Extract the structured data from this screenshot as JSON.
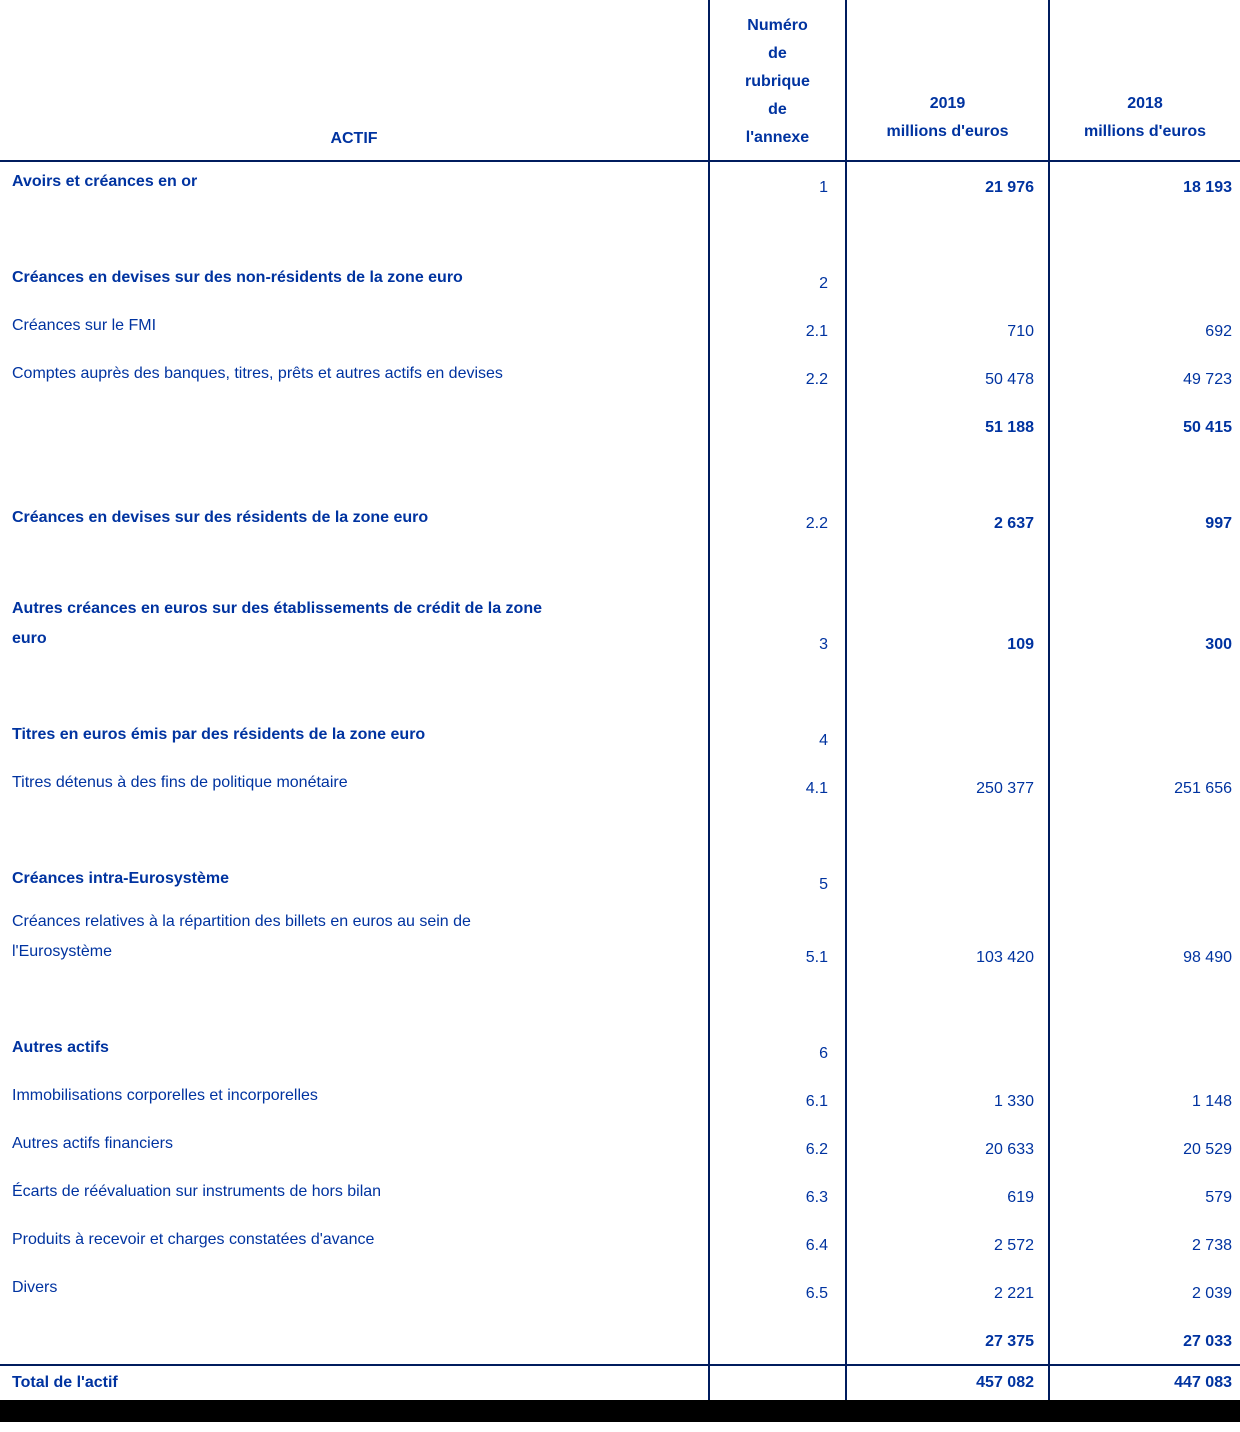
{
  "colors": {
    "text_blue": "#0033a0",
    "line": "#001c5e",
    "bottom_bar": "#000000"
  },
  "header": {
    "actif_label": "ACTIF",
    "note_column_lines": [
      "Numéro",
      "de",
      "rubrique",
      "de",
      "l'annexe"
    ],
    "col_2019": {
      "year": "2019",
      "unit": "millions d'euros"
    },
    "col_2018": {
      "year": "2018",
      "unit": "millions d'euros"
    }
  },
  "table": {
    "rows": [
      {
        "type": "section",
        "label": "Avoirs et créances en or",
        "note": "1",
        "v2019": "21 976",
        "v2018": "18 193"
      },
      {
        "type": "spacer",
        "label": "",
        "note": "",
        "v2019": "",
        "v2018": ""
      },
      {
        "type": "section",
        "label": "Créances en devises sur des non-résidents de la zone euro",
        "note": "2",
        "v2019": "",
        "v2018": ""
      },
      {
        "type": "item",
        "label": "Créances sur le FMI",
        "note": "2.1",
        "v2019": "710",
        "v2018": "692"
      },
      {
        "type": "item",
        "label": "Comptes auprès des banques, titres, prêts et autres actifs en devises",
        "note": "2.2",
        "v2019": "50 478",
        "v2018": "49 723"
      },
      {
        "type": "subtotal",
        "label": "",
        "note": "",
        "v2019": "51 188",
        "v2018": "50 415"
      },
      {
        "type": "spacer",
        "label": "",
        "note": "",
        "v2019": "",
        "v2018": ""
      },
      {
        "type": "section",
        "label": "Créances en devises sur des résidents de la zone euro",
        "note": "2.2",
        "v2019": "2 637",
        "v2018": "997"
      },
      {
        "type": "spacer",
        "label": "",
        "note": "",
        "v2019": "",
        "v2018": ""
      },
      {
        "type": "section",
        "label": "Autres créances en euros sur des établissements de crédit de la zone\neuro",
        "note": "3",
        "v2019": "109",
        "v2018": "300"
      },
      {
        "type": "spacer",
        "label": "",
        "note": "",
        "v2019": "",
        "v2018": ""
      },
      {
        "type": "section",
        "label": "Titres en euros émis par des résidents de la zone euro",
        "note": "4",
        "v2019": "",
        "v2018": ""
      },
      {
        "type": "item",
        "label": "Titres détenus à des fins de politique monétaire",
        "note": "4.1",
        "v2019": "250 377",
        "v2018": "251 656"
      },
      {
        "type": "spacer",
        "label": "",
        "note": "",
        "v2019": "",
        "v2018": ""
      },
      {
        "type": "section",
        "label": "Créances intra-Eurosystème",
        "note": "5",
        "v2019": "",
        "v2018": ""
      },
      {
        "type": "item",
        "label": "Créances relatives à la répartition des billets en euros au sein de\nl'Eurosystème",
        "note": "5.1",
        "v2019": "103 420",
        "v2018": "98 490"
      },
      {
        "type": "spacer",
        "label": "",
        "note": "",
        "v2019": "",
        "v2018": ""
      },
      {
        "type": "section",
        "label": "Autres actifs",
        "note": "6",
        "v2019": "",
        "v2018": ""
      },
      {
        "type": "item",
        "label": "Immobilisations corporelles et incorporelles",
        "note": "6.1",
        "v2019": "1 330",
        "v2018": "1 148"
      },
      {
        "type": "item",
        "label": "Autres actifs financiers",
        "note": "6.2",
        "v2019": "20 633",
        "v2018": "20 529"
      },
      {
        "type": "item",
        "label": "Écarts de réévaluation sur instruments de hors bilan",
        "note": "6.3",
        "v2019": "619",
        "v2018": "579"
      },
      {
        "type": "item",
        "label": "Produits à recevoir et charges constatées d'avance",
        "note": "6.4",
        "v2019": "2 572",
        "v2018": "2 738"
      },
      {
        "type": "item",
        "label": "Divers",
        "note": "6.5",
        "v2019": "2 221",
        "v2018": "2 039"
      },
      {
        "type": "subtotal",
        "label": "",
        "note": "",
        "v2019": "27 375",
        "v2018": "27 033"
      }
    ]
  },
  "total": {
    "label": "Total de l'actif",
    "v2019": "457 082",
    "v2018": "447 083"
  }
}
